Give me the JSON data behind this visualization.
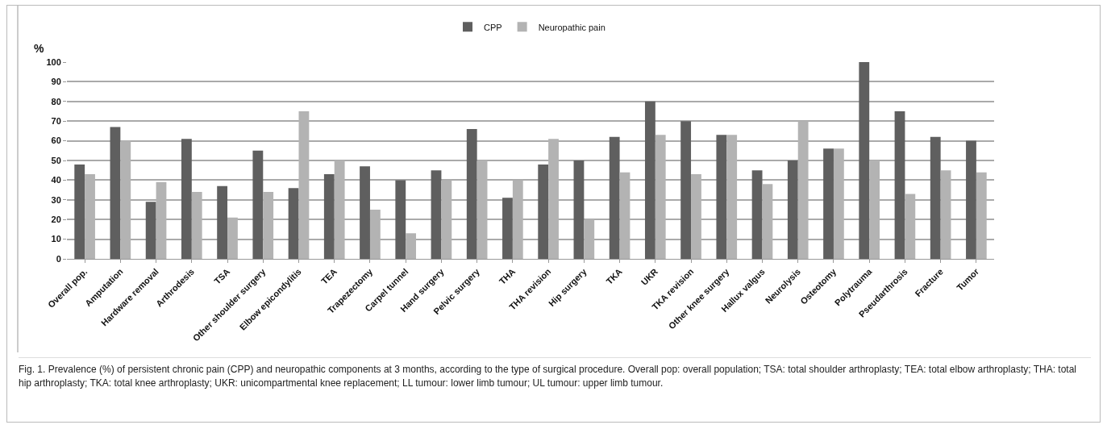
{
  "chart_data": {
    "type": "bar",
    "categories": [
      "Overall pop.",
      "Amputation",
      "Hardware removal",
      "Arthrodesis",
      "TSA",
      "Other shoulder surgery",
      "Elbow epicondylitis",
      "TEA",
      "Trapezectomy",
      "Carpel tunnel",
      "Hand surgery",
      "Pelvic surgery",
      "THA",
      "THA revision",
      "Hip surgery",
      "TKA",
      "UKR",
      "TKA revision",
      "Other knee surgery",
      "Hallux valgus",
      "Neurolysis",
      "Osteotomy",
      "Polytrauma",
      "Pseudarthrosis",
      "Fracture",
      "Tumor"
    ],
    "series": [
      {
        "name": "CPP",
        "color": "#5f5f5f",
        "values": [
          48,
          67,
          29,
          61,
          37,
          55,
          36,
          43,
          47,
          40,
          45,
          66,
          31,
          48,
          50,
          62,
          80,
          70,
          63,
          45,
          50,
          56,
          100,
          75,
          62,
          60
        ]
      },
      {
        "name": "Neuropathic pain",
        "color": "#b3b3b3",
        "values": [
          43,
          60,
          39,
          34,
          21,
          34,
          75,
          50,
          25,
          13,
          40,
          50,
          40,
          61,
          20,
          44,
          63,
          43,
          63,
          38,
          70,
          56,
          50,
          33,
          45,
          44
        ]
      }
    ],
    "ylabel": "%",
    "ylim": [
      0,
      100
    ],
    "yticks": [
      0,
      10,
      20,
      30,
      40,
      50,
      60,
      70,
      80,
      90,
      100
    ],
    "grid": "y",
    "legend": "top",
    "annotations": [
      "Fig. 1. Prevalence (%) of persistent chronic pain (CPP) and neuropathic components at 3 months, according to the type of surgical procedure. Overall pop: overall population; TSA: total shoulder arthroplasty; TEA: total elbow arthroplasty; THA: total hip arthroplasty; TKA: total knee arthroplasty; UKR: unicompartmental knee replacement; LL tumour: lower limb tumour; UL tumour: upper limb tumour."
    ]
  }
}
